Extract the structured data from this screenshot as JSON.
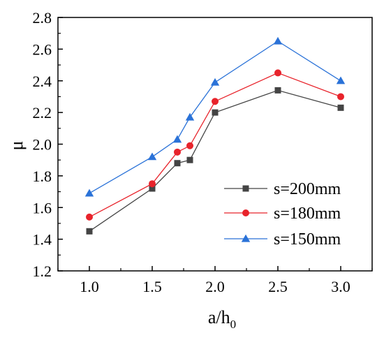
{
  "chart_data": {
    "type": "line",
    "title": "",
    "xlabel": "a/h",
    "xlabel_sub": "0",
    "ylabel": "μ",
    "xlim": [
      0.75,
      3.25
    ],
    "ylim": [
      1.2,
      2.8
    ],
    "xticks": [
      1.0,
      1.5,
      2.0,
      2.5,
      3.0
    ],
    "xtick_labels": [
      "1.0",
      "1.5",
      "2.0",
      "2.5",
      "3.0"
    ],
    "yticks": [
      1.2,
      1.4,
      1.6,
      1.8,
      2.0,
      2.2,
      2.4,
      2.6,
      2.8
    ],
    "ytick_labels": [
      "1.2",
      "1.4",
      "1.6",
      "1.8",
      "2.0",
      "2.2",
      "2.4",
      "2.6",
      "2.8"
    ],
    "grid": false,
    "legend_position": "bottom-right",
    "x": [
      1.0,
      1.5,
      1.7,
      1.8,
      2.0,
      2.5,
      3.0
    ],
    "series": [
      {
        "name": "s=200mm",
        "marker": "square",
        "color": "#444444",
        "values": [
          1.45,
          1.72,
          1.88,
          1.9,
          2.2,
          2.34,
          2.23
        ]
      },
      {
        "name": "s=180mm",
        "marker": "circle",
        "color": "#e8232b",
        "values": [
          1.54,
          1.75,
          1.95,
          1.99,
          2.27,
          2.45,
          2.3
        ]
      },
      {
        "name": "s=150mm",
        "marker": "triangle",
        "color": "#2a72d8",
        "values": [
          1.69,
          1.92,
          2.03,
          2.17,
          2.39,
          2.65,
          2.4
        ]
      }
    ]
  }
}
